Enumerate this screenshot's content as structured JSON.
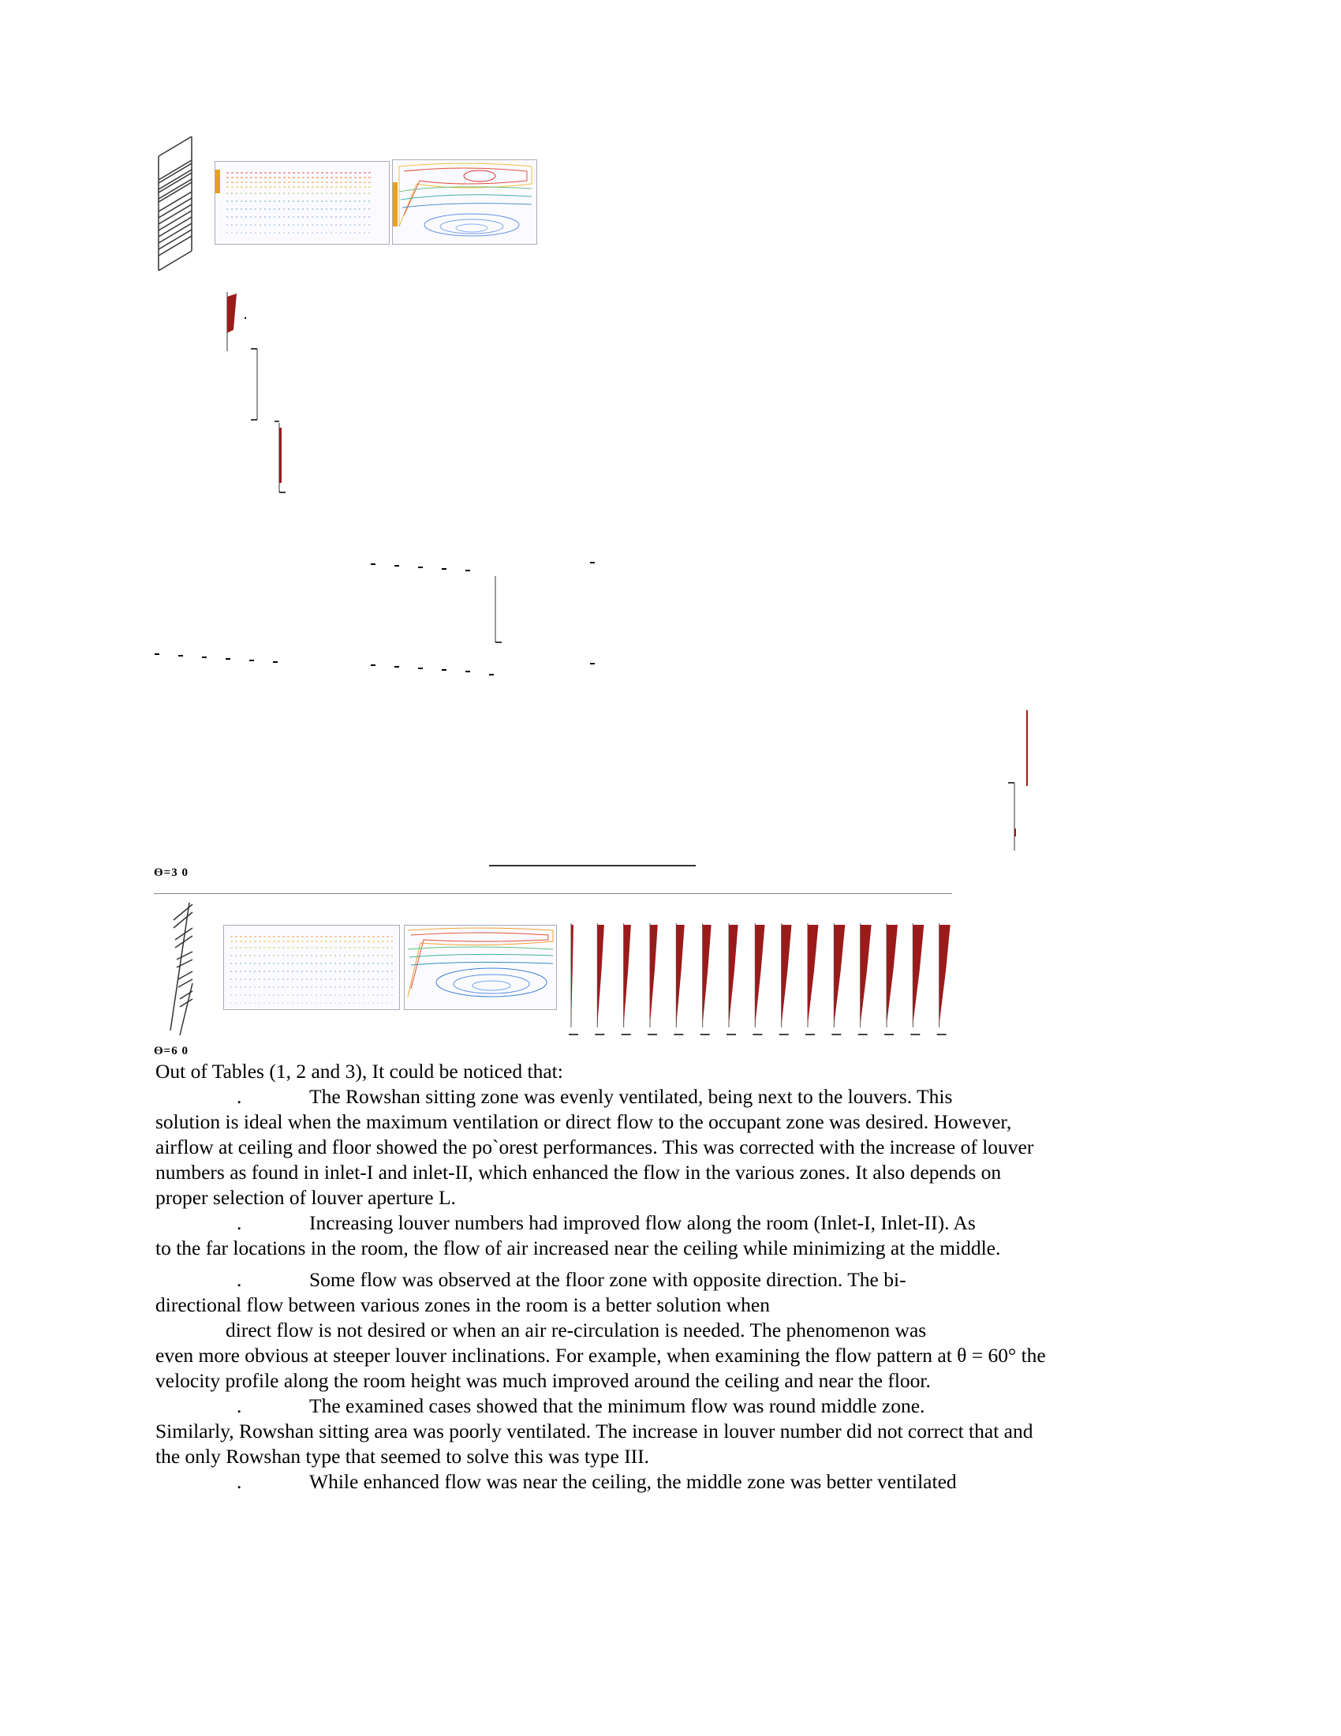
{
  "figure": {
    "theta_top": "Ө=3 0",
    "theta_bottom": "Ө=6 0",
    "accent_dark_red": "#9b1b1b",
    "profile_count": 15
  },
  "text": {
    "intro": "Out of Tables (1, 2 and 3), It could be noticed that:",
    "bullet_mark": ".",
    "p1_first": "The Rowshan sitting zone was evenly ventilated, being next to the louvers. This",
    "p1_rest": "solution is ideal when the maximum ventilation or direct flow to the occupant zone was desired. However, airflow at ceiling and floor showed the po`orest performances. This was corrected with the increase of louver numbers as found in inlet-I and inlet-II, which enhanced the flow in the various zones.   It also depends on proper selection of louver aperture L.",
    "p2_first": "Increasing louver numbers had improved flow along the room (Inlet-I, Inlet-II). As",
    "p2_rest": "to the far locations in the room, the flow of air increased near the ceiling while minimizing at the middle.",
    "p3_first": "Some flow was observed at the floor zone with opposite direction. The bi-",
    "p3_line2": "directional flow between various zones in the room is a better solution when",
    "p3_line3": "direct flow is not desired or when an air re-circulation is needed. The phenomenon was",
    "p3_rest": "even more obvious at steeper louver inclinations.   For example, when examining the flow pattern at θ = 60° the velocity profile along the room height was much improved around the ceiling and near the floor.",
    "p4_first": "The examined cases showed that the minimum flow was round middle zone.",
    "p4_rest": "Similarly, Rowshan sitting area was poorly ventilated. The increase in louver number did not correct that and the only Rowshan type that seemed to solve this was type III.",
    "p5_first": "While enhanced flow was near the ceiling, the middle zone was better ventilated"
  }
}
